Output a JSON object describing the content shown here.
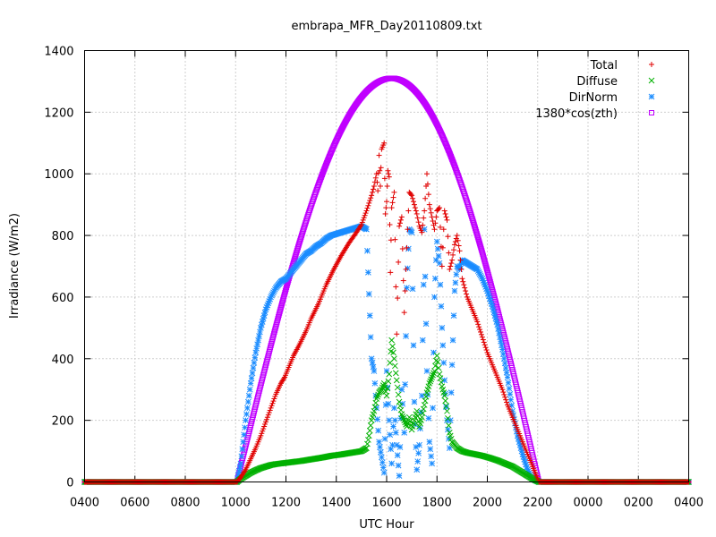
{
  "chart_data": {
    "type": "scatter",
    "title": "embrapa_MFR_Day20110809.txt",
    "xlabel": "UTC Hour",
    "ylabel": "Irradiance (W/m2)",
    "xlim": [
      4,
      28
    ],
    "ylim": [
      0,
      1400
    ],
    "x_ticks": [
      {
        "value": 4,
        "label": "0400"
      },
      {
        "value": 6,
        "label": "0600"
      },
      {
        "value": 8,
        "label": "0800"
      },
      {
        "value": 10,
        "label": "1000"
      },
      {
        "value": 12,
        "label": "1200"
      },
      {
        "value": 14,
        "label": "1400"
      },
      {
        "value": 16,
        "label": "1600"
      },
      {
        "value": 18,
        "label": "1800"
      },
      {
        "value": 20,
        "label": "2000"
      },
      {
        "value": 22,
        "label": "2200"
      },
      {
        "value": 24,
        "label": "0000"
      },
      {
        "value": 26,
        "label": "0200"
      },
      {
        "value": 28,
        "label": "0400"
      }
    ],
    "y_ticks": [
      0,
      200,
      400,
      600,
      800,
      1000,
      1200,
      1400
    ],
    "grid": true,
    "legend_position": "top-right",
    "series": [
      {
        "name": "Total",
        "marker": "plus",
        "color": "#e00000",
        "points": [
          [
            4,
            0
          ],
          [
            10.05,
            0
          ],
          [
            10.2,
            15
          ],
          [
            10.4,
            40
          ],
          [
            10.6,
            75
          ],
          [
            10.8,
            110
          ],
          [
            11,
            150
          ],
          [
            11.2,
            195
          ],
          [
            11.4,
            240
          ],
          [
            11.6,
            285
          ],
          [
            11.8,
            320
          ],
          [
            11.95,
            340
          ],
          [
            12.3,
            410
          ],
          [
            12.5,
            440
          ],
          [
            12.8,
            490
          ],
          [
            13,
            530
          ],
          [
            13.3,
            580
          ],
          [
            13.6,
            640
          ],
          [
            13.9,
            690
          ],
          [
            14.2,
            735
          ],
          [
            14.5,
            775
          ],
          [
            14.8,
            810
          ],
          [
            15,
            835
          ],
          [
            15.2,
            880
          ],
          [
            15.4,
            930
          ],
          [
            15.5,
            960
          ],
          [
            15.6,
            1000
          ],
          [
            15.65,
            945
          ],
          [
            15.7,
            1060
          ],
          [
            15.75,
            960
          ],
          [
            15.8,
            1080
          ],
          [
            15.9,
            1100
          ],
          [
            15.95,
            870
          ],
          [
            16,
            910
          ],
          [
            16.05,
            1010
          ],
          [
            16.1,
            990
          ],
          [
            16.15,
            680
          ],
          [
            16.2,
            890
          ],
          [
            16.3,
            940
          ],
          [
            16.4,
            480
          ],
          [
            16.5,
            830
          ],
          [
            16.6,
            860
          ],
          [
            16.7,
            550
          ],
          [
            16.8,
            760
          ],
          [
            16.9,
            940
          ],
          [
            17,
            930
          ],
          [
            17.1,
            900
          ],
          [
            17.2,
            870
          ],
          [
            17.3,
            830
          ],
          [
            17.4,
            810
          ],
          [
            17.5,
            880
          ],
          [
            17.6,
            1000
          ],
          [
            17.7,
            900
          ],
          [
            17.8,
            860
          ],
          [
            17.9,
            820
          ],
          [
            18,
            880
          ],
          [
            18.1,
            890
          ],
          [
            18.2,
            700
          ],
          [
            18.3,
            880
          ],
          [
            18.4,
            850
          ],
          [
            18.5,
            690
          ],
          [
            18.6,
            720
          ],
          [
            18.7,
            770
          ],
          [
            18.8,
            800
          ],
          [
            18.9,
            750
          ],
          [
            19,
            660
          ],
          [
            19.2,
            600
          ],
          [
            19.4,
            560
          ],
          [
            19.6,
            520
          ],
          [
            19.8,
            470
          ],
          [
            20,
            420
          ],
          [
            20.2,
            380
          ],
          [
            20.4,
            340
          ],
          [
            20.6,
            300
          ],
          [
            20.8,
            250
          ],
          [
            21,
            210
          ],
          [
            21.2,
            170
          ],
          [
            21.4,
            130
          ],
          [
            21.6,
            90
          ],
          [
            21.8,
            50
          ],
          [
            21.95,
            20
          ],
          [
            22.05,
            0
          ],
          [
            28,
            0
          ]
        ]
      },
      {
        "name": "Diffuse",
        "marker": "cross",
        "color": "#00b000",
        "points": [
          [
            4,
            0
          ],
          [
            10.05,
            0
          ],
          [
            10.2,
            10
          ],
          [
            10.4,
            20
          ],
          [
            10.6,
            30
          ],
          [
            10.8,
            38
          ],
          [
            11,
            45
          ],
          [
            11.2,
            50
          ],
          [
            11.4,
            55
          ],
          [
            11.6,
            58
          ],
          [
            11.8,
            60
          ],
          [
            12,
            62
          ],
          [
            12.3,
            65
          ],
          [
            12.6,
            68
          ],
          [
            12.9,
            72
          ],
          [
            13.2,
            76
          ],
          [
            13.5,
            80
          ],
          [
            13.8,
            85
          ],
          [
            14.1,
            88
          ],
          [
            14.4,
            92
          ],
          [
            14.7,
            96
          ],
          [
            15,
            100
          ],
          [
            15.2,
            110
          ],
          [
            15.3,
            150
          ],
          [
            15.4,
            200
          ],
          [
            15.5,
            230
          ],
          [
            15.6,
            270
          ],
          [
            15.7,
            290
          ],
          [
            15.8,
            300
          ],
          [
            15.9,
            320
          ],
          [
            16,
            280
          ],
          [
            16.1,
            350
          ],
          [
            16.2,
            460
          ],
          [
            16.3,
            400
          ],
          [
            16.4,
            330
          ],
          [
            16.5,
            260
          ],
          [
            16.6,
            220
          ],
          [
            16.7,
            200
          ],
          [
            16.8,
            180
          ],
          [
            16.9,
            210
          ],
          [
            17,
            170
          ],
          [
            17.1,
            200
          ],
          [
            17.2,
            230
          ],
          [
            17.3,
            180
          ],
          [
            17.4,
            210
          ],
          [
            17.5,
            250
          ],
          [
            17.6,
            290
          ],
          [
            17.7,
            320
          ],
          [
            17.8,
            340
          ],
          [
            17.9,
            360
          ],
          [
            18,
            410
          ],
          [
            18.1,
            350
          ],
          [
            18.2,
            310
          ],
          [
            18.3,
            280
          ],
          [
            18.4,
            230
          ],
          [
            18.5,
            160
          ],
          [
            18.6,
            130
          ],
          [
            18.8,
            110
          ],
          [
            19,
            100
          ],
          [
            19.2,
            95
          ],
          [
            19.5,
            90
          ],
          [
            19.8,
            85
          ],
          [
            20.1,
            78
          ],
          [
            20.4,
            70
          ],
          [
            20.7,
            60
          ],
          [
            21,
            50
          ],
          [
            21.2,
            40
          ],
          [
            21.4,
            30
          ],
          [
            21.6,
            20
          ],
          [
            21.8,
            10
          ],
          [
            22.05,
            0
          ],
          [
            28,
            0
          ]
        ]
      },
      {
        "name": "DirNorm",
        "marker": "star",
        "color": "#1a8cff",
        "points": [
          [
            4,
            0
          ],
          [
            10.05,
            0
          ],
          [
            10.2,
            60
          ],
          [
            10.4,
            200
          ],
          [
            10.6,
            320
          ],
          [
            10.8,
            420
          ],
          [
            11,
            500
          ],
          [
            11.2,
            560
          ],
          [
            11.4,
            600
          ],
          [
            11.6,
            630
          ],
          [
            11.8,
            650
          ],
          [
            12,
            660
          ],
          [
            12.2,
            680
          ],
          [
            12.4,
            700
          ],
          [
            12.6,
            720
          ],
          [
            12.8,
            740
          ],
          [
            13,
            750
          ],
          [
            13.2,
            765
          ],
          [
            13.4,
            775
          ],
          [
            13.6,
            790
          ],
          [
            13.8,
            800
          ],
          [
            14,
            805
          ],
          [
            14.2,
            810
          ],
          [
            14.4,
            815
          ],
          [
            14.6,
            820
          ],
          [
            14.8,
            825
          ],
          [
            15,
            830
          ],
          [
            15.2,
            820
          ],
          [
            15.3,
            610
          ],
          [
            15.4,
            400
          ],
          [
            15.5,
            360
          ],
          [
            15.6,
            240
          ],
          [
            15.7,
            130
          ],
          [
            15.8,
            80
          ],
          [
            15.9,
            30
          ],
          [
            16,
            360
          ],
          [
            16.1,
            200
          ],
          [
            16.2,
            60
          ],
          [
            16.3,
            240
          ],
          [
            16.4,
            120
          ],
          [
            16.5,
            20
          ],
          [
            16.6,
            300
          ],
          [
            16.7,
            160
          ],
          [
            16.8,
            630
          ],
          [
            16.9,
            820
          ],
          [
            17,
            810
          ],
          [
            17.1,
            260
          ],
          [
            17.2,
            40
          ],
          [
            17.3,
            120
          ],
          [
            17.4,
            280
          ],
          [
            17.5,
            820
          ],
          [
            17.6,
            360
          ],
          [
            17.7,
            130
          ],
          [
            17.8,
            60
          ],
          [
            17.9,
            600
          ],
          [
            18,
            780
          ],
          [
            18.1,
            710
          ],
          [
            18.2,
            500
          ],
          [
            18.3,
            330
          ],
          [
            18.4,
            200
          ],
          [
            18.5,
            110
          ],
          [
            18.6,
            380
          ],
          [
            18.7,
            620
          ],
          [
            18.8,
            700
          ],
          [
            18.9,
            690
          ],
          [
            19,
            720
          ],
          [
            19.2,
            710
          ],
          [
            19.4,
            700
          ],
          [
            19.6,
            690
          ],
          [
            19.8,
            660
          ],
          [
            20,
            620
          ],
          [
            20.2,
            570
          ],
          [
            20.4,
            510
          ],
          [
            20.6,
            430
          ],
          [
            20.8,
            340
          ],
          [
            21,
            230
          ],
          [
            21.2,
            150
          ],
          [
            21.4,
            90
          ],
          [
            21.6,
            40
          ],
          [
            21.8,
            10
          ],
          [
            22.05,
            0
          ],
          [
            28,
            0
          ]
        ]
      },
      {
        "name": "1380*cos(zth)",
        "marker": "square",
        "color": "#c000ff",
        "model": {
          "kind": "dome",
          "x_start": 10.05,
          "x_peak": 16.2,
          "x_end": 22.05,
          "peak": 1310
        }
      }
    ]
  }
}
